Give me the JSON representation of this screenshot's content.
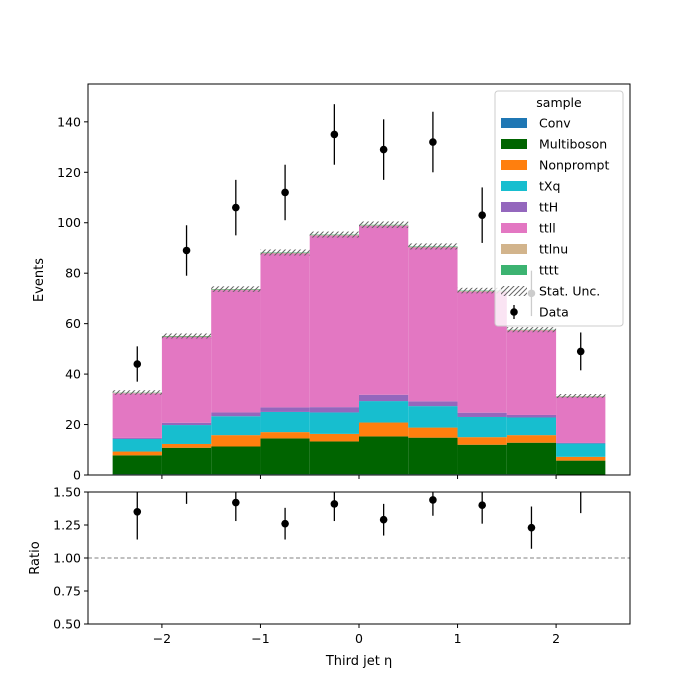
{
  "chart_data": {
    "type": "bar",
    "stacked": true,
    "x_edges": [
      -2.5,
      -2.0,
      -1.5,
      -1.0,
      -0.5,
      0.0,
      0.5,
      1.0,
      1.5,
      2.0,
      2.5
    ],
    "x_centers": [
      -2.25,
      -1.75,
      -1.25,
      -0.75,
      -0.25,
      0.25,
      0.75,
      1.25,
      1.75,
      2.25
    ],
    "xlabel": "Third jet  η",
    "xlim": [
      -2.75,
      2.75
    ],
    "x_ticks": [
      -2,
      -1,
      0,
      1,
      2
    ],
    "x_tick_labels": [
      "−2",
      "−1",
      "0",
      "1",
      "2"
    ],
    "main_panel": {
      "ylabel": "Events",
      "ylim": [
        0,
        155
      ],
      "y_ticks": [
        0,
        20,
        40,
        60,
        80,
        100,
        120,
        140
      ],
      "y_tick_labels": [
        "0",
        "20",
        "40",
        "60",
        "80",
        "100",
        "120",
        "140"
      ],
      "series": [
        {
          "name": "Conv",
          "color": "#1f77b4",
          "values": [
            0.3,
            0.3,
            0.3,
            0.3,
            0.3,
            0.3,
            0.3,
            0.3,
            0.3,
            0.2
          ]
        },
        {
          "name": "Multiboson",
          "color": "#006400",
          "values": [
            7.5,
            10.5,
            11.0,
            14.2,
            13.0,
            15.0,
            14.5,
            11.7,
            12.5,
            5.5
          ]
        },
        {
          "name": "Nonprompt",
          "color": "#ff7f0e",
          "values": [
            1.5,
            1.5,
            4.5,
            2.5,
            3.0,
            5.5,
            4.0,
            3.0,
            3.0,
            1.5
          ]
        },
        {
          "name": "tXq",
          "color": "#17becf",
          "values": [
            5.0,
            7.5,
            7.5,
            8.0,
            8.5,
            8.5,
            8.5,
            8.0,
            7.0,
            5.3
          ]
        },
        {
          "name": "ttH",
          "color": "#9467bd",
          "values": [
            0.4,
            0.9,
            1.5,
            1.8,
            2.1,
            2.5,
            1.9,
            1.7,
            1.0,
            0.2
          ]
        },
        {
          "name": "ttll",
          "color": "#e377c2",
          "values": [
            17.7,
            34.0,
            48.5,
            61.0,
            68.0,
            67.0,
            61.0,
            48.0,
            33.5,
            18.3
          ]
        },
        {
          "name": "ttlnu",
          "color": "#d2b48c",
          "values": [
            0.2,
            0.2,
            0.2,
            0.2,
            0.2,
            0.2,
            0.2,
            0.2,
            0.2,
            0.2
          ]
        },
        {
          "name": "tttt",
          "color": "#3cb371",
          "values": [
            0.1,
            0.2,
            0.2,
            0.2,
            0.2,
            0.2,
            0.2,
            0.2,
            0.1,
            0.1
          ]
        }
      ],
      "stat_unc": {
        "name": "Stat. Unc.",
        "halfwidth": [
          0.9,
          1.0,
          1.1,
          1.2,
          1.2,
          1.3,
          1.2,
          1.1,
          1.0,
          0.8
        ]
      },
      "data": {
        "name": "Data",
        "values": [
          44,
          89,
          106,
          112,
          135,
          129,
          132,
          103,
          72,
          49
        ],
        "errors": [
          7.0,
          10.0,
          11.0,
          11.0,
          12.0,
          12.0,
          12.0,
          11.0,
          9.0,
          7.5
        ]
      },
      "legend": {
        "title": "sample",
        "placement": "top-right"
      }
    },
    "ratio_panel": {
      "ylabel": "Ratio",
      "ylim": [
        0.5,
        1.5
      ],
      "y_ticks": [
        0.5,
        0.75,
        1.0,
        1.25,
        1.5
      ],
      "y_tick_labels": [
        "0.50",
        "0.75",
        "1.00",
        "1.25",
        "1.50"
      ],
      "reference_line": 1.0,
      "values": [
        1.35,
        1.59,
        1.42,
        1.26,
        1.41,
        1.29,
        1.44,
        1.4,
        1.23,
        1.56
      ],
      "errors": [
        0.21,
        0.18,
        0.14,
        0.12,
        0.13,
        0.12,
        0.12,
        0.14,
        0.16,
        0.22
      ]
    }
  }
}
